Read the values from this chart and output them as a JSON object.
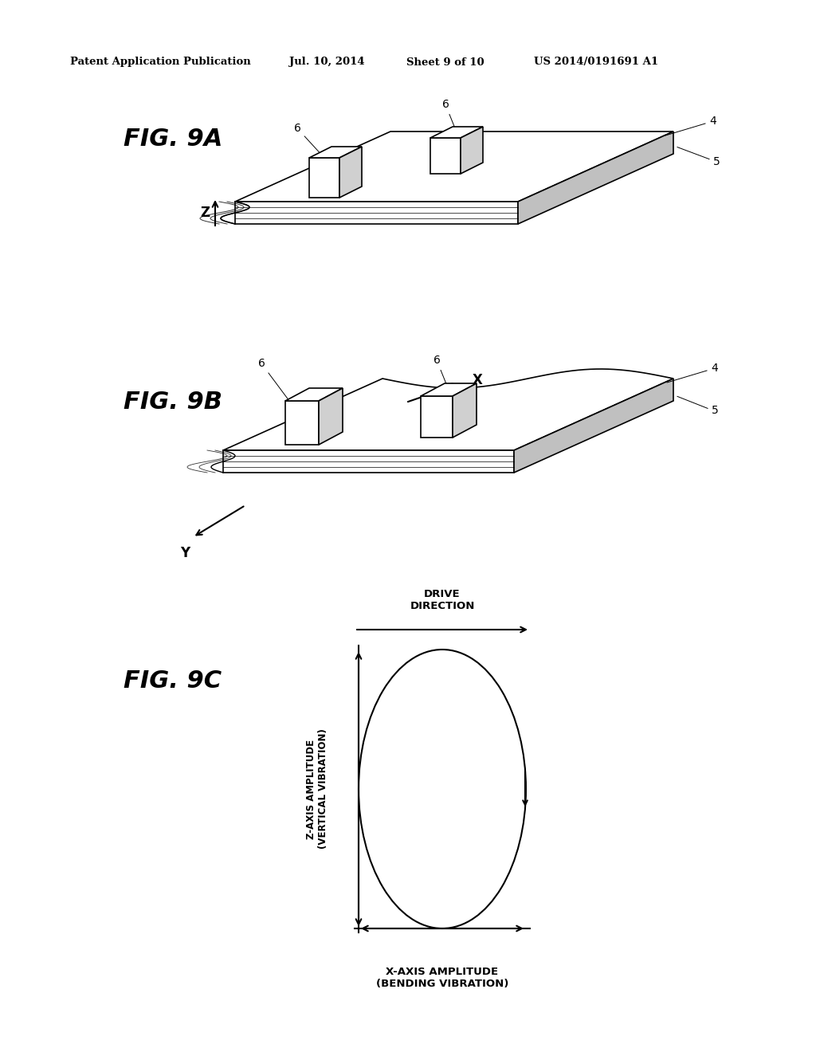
{
  "header_text": "Patent Application Publication",
  "header_date": "Jul. 10, 2014",
  "header_sheet": "Sheet 9 of 10",
  "header_patent": "US 2014/0191691 A1",
  "fig9a_label": "FIG. 9A",
  "fig9b_label": "FIG. 9B",
  "fig9c_label": "FIG. 9C",
  "background_color": "#ffffff",
  "line_color": "#000000",
  "fig9c_xlabel": "X-AXIS AMPLITUDE\n(BENDING VIBRATION)",
  "fig9c_ylabel": "Z-AXIS AMPLITUDE\n(VERTICAL VIBRATION)",
  "fig9c_top_label": "DRIVE\nDIRECTION"
}
